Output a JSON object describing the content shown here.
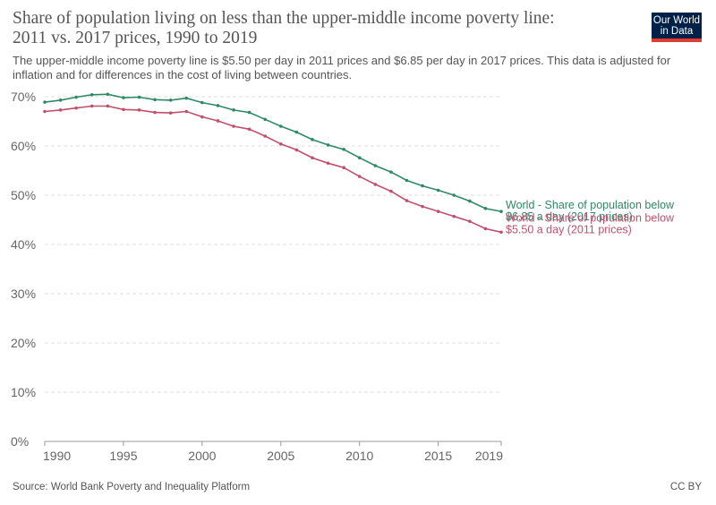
{
  "header": {
    "title": "Share of population living on less than the upper-middle income poverty line: 2011 vs. 2017 prices, 1990 to 2019",
    "subtitle": "The upper-middle income poverty line is $5.50 per day in 2011 prices and $6.85 per day in 2017 prices. This data is adjusted for inflation and for differences in the cost of living between countries.",
    "logo_line1": "Our World",
    "logo_line2": "in Data"
  },
  "footer": {
    "source": "Source: World Bank Poverty and Inequality Platform",
    "license": "CC BY"
  },
  "colors": {
    "series_2017": "#2e8a66",
    "series_2011": "#c0506c",
    "grid": "#dddddd",
    "axis": "#999999"
  },
  "chart_data": {
    "type": "line",
    "x_ticks": [
      1990,
      1995,
      2000,
      2005,
      2010,
      2015,
      2019
    ],
    "y_ticks": [
      0,
      10,
      20,
      30,
      40,
      50,
      60,
      70
    ],
    "y_tick_labels": [
      "0%",
      "10%",
      "20%",
      "30%",
      "40%",
      "50%",
      "60%",
      "70%"
    ],
    "xlim": [
      1990,
      2019
    ],
    "ylim": [
      0,
      70
    ],
    "grid": "horizontal dashed",
    "x": [
      1990,
      1991,
      1992,
      1993,
      1994,
      1995,
      1996,
      1997,
      1998,
      1999,
      2000,
      2001,
      2002,
      2003,
      2004,
      2005,
      2006,
      2007,
      2008,
      2009,
      2010,
      2011,
      2012,
      2013,
      2014,
      2015,
      2016,
      2017,
      2018,
      2019
    ],
    "series": [
      {
        "name_line1": "World - Share of population below",
        "name_line2": "$6.85 a day (2017 prices)",
        "color_key": "series_2017",
        "values": [
          68.9,
          69.3,
          69.9,
          70.4,
          70.5,
          69.8,
          69.9,
          69.4,
          69.3,
          69.7,
          68.8,
          68.2,
          67.3,
          66.8,
          65.4,
          64.0,
          62.8,
          61.3,
          60.2,
          59.3,
          57.6,
          56.0,
          54.7,
          53.0,
          51.9,
          51.0,
          50.0,
          48.8,
          47.3,
          46.7
        ]
      },
      {
        "name_line1": "World - Share of population below",
        "name_line2": "$5.50 a day (2011 prices)",
        "color_key": "series_2011",
        "values": [
          67.0,
          67.3,
          67.7,
          68.1,
          68.1,
          67.4,
          67.3,
          66.8,
          66.7,
          67.0,
          65.9,
          65.1,
          64.0,
          63.4,
          62.0,
          60.4,
          59.2,
          57.6,
          56.5,
          55.6,
          53.8,
          52.2,
          50.8,
          48.9,
          47.7,
          46.7,
          45.7,
          44.7,
          43.2,
          42.5
        ]
      }
    ]
  }
}
